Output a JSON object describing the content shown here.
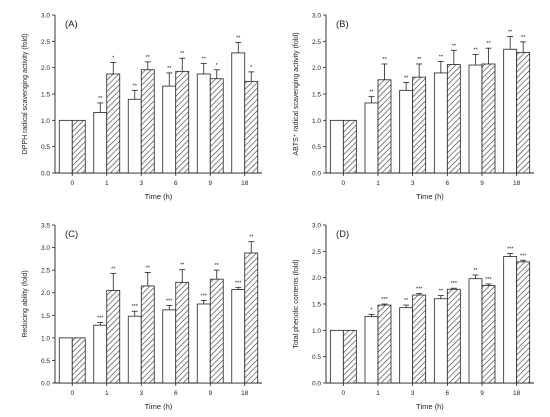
{
  "chart_data": [
    {
      "type": "bar",
      "panel_label": "(A)",
      "ylabel": "DPPH radical scavenging activity (fold)",
      "xlabel": "Time (h)",
      "categories": [
        "0",
        "1",
        "3",
        "6",
        "9",
        "18"
      ],
      "ylim": [
        0,
        3.0
      ],
      "yticks": [
        "0.0",
        "0.5",
        "1.0",
        "1.5",
        "2.0",
        "2.5",
        "3.0"
      ],
      "series": [
        {
          "fill": "open",
          "values": [
            1.0,
            1.15,
            1.4,
            1.65,
            1.88,
            2.28
          ],
          "errors": [
            0,
            0.18,
            0.17,
            0.25,
            0.2,
            0.2
          ],
          "sig": [
            "",
            "**",
            "**",
            "**",
            "**",
            "**"
          ]
        },
        {
          "fill": "hatched",
          "values": [
            1.0,
            1.88,
            1.96,
            1.93,
            1.79,
            1.74
          ],
          "errors": [
            0,
            0.22,
            0.15,
            0.25,
            0.17,
            0.18
          ],
          "sig": [
            "",
            "*",
            "**",
            "**",
            "*",
            "*"
          ]
        }
      ]
    },
    {
      "type": "bar",
      "panel_label": "(B)",
      "ylabel": "ABTS⁺ radical scavenging activity (fold)",
      "xlabel": "Time (h)",
      "categories": [
        "0",
        "1",
        "3",
        "6",
        "9",
        "18"
      ],
      "ylim": [
        0,
        3.0
      ],
      "yticks": [
        "0.0",
        "0.5",
        "1.0",
        "1.5",
        "2.0",
        "2.5",
        "3.0"
      ],
      "series": [
        {
          "fill": "open",
          "values": [
            1.0,
            1.33,
            1.57,
            1.9,
            2.05,
            2.35
          ],
          "errors": [
            0,
            0.12,
            0.15,
            0.22,
            0.2,
            0.24
          ],
          "sig": [
            "",
            "**",
            "**",
            "**",
            "**",
            "**"
          ]
        },
        {
          "fill": "hatched",
          "values": [
            1.0,
            1.77,
            1.82,
            2.06,
            2.07,
            2.29
          ],
          "errors": [
            0,
            0.3,
            0.25,
            0.27,
            0.3,
            0.2
          ],
          "sig": [
            "",
            "**",
            "**",
            "**",
            "**",
            "**"
          ]
        }
      ]
    },
    {
      "type": "bar",
      "panel_label": "(C)",
      "ylabel": "Reducing ability (fold)",
      "xlabel": "Time (h)",
      "categories": [
        "0",
        "1",
        "3",
        "6",
        "9",
        "18"
      ],
      "ylim": [
        0,
        3.5
      ],
      "yticks": [
        "0.0",
        "0.5",
        "1.0",
        "1.5",
        "2.0",
        "2.5",
        "3.0",
        "3.5"
      ],
      "series": [
        {
          "fill": "open",
          "values": [
            1.0,
            1.28,
            1.48,
            1.62,
            1.75,
            2.07
          ],
          "errors": [
            0,
            0.06,
            0.11,
            0.1,
            0.08,
            0.05
          ],
          "sig": [
            "",
            "***",
            "***",
            "***",
            "***",
            "***"
          ]
        },
        {
          "fill": "hatched",
          "values": [
            1.0,
            2.05,
            2.15,
            2.23,
            2.3,
            2.88
          ],
          "errors": [
            0,
            0.38,
            0.3,
            0.28,
            0.2,
            0.25
          ],
          "sig": [
            "",
            "**",
            "**",
            "**",
            "**",
            "**"
          ]
        }
      ]
    },
    {
      "type": "bar",
      "panel_label": "(D)",
      "ylabel": "Total phenolic contents (fold)",
      "xlabel": "Time (h)",
      "categories": [
        "0",
        "1",
        "3",
        "6",
        "9",
        "18"
      ],
      "ylim": [
        0,
        3.0
      ],
      "yticks": [
        "0.0",
        "0.5",
        "1.0",
        "1.5",
        "2.0",
        "2.5",
        "3.0"
      ],
      "series": [
        {
          "fill": "open",
          "values": [
            1.0,
            1.26,
            1.43,
            1.6,
            1.98,
            2.4
          ],
          "errors": [
            0,
            0.04,
            0.05,
            0.06,
            0.07,
            0.06
          ],
          "sig": [
            "",
            "*",
            "**",
            "**",
            "**",
            "***"
          ]
        },
        {
          "fill": "hatched",
          "values": [
            1.0,
            1.48,
            1.67,
            1.78,
            1.85,
            2.3
          ],
          "errors": [
            0,
            0.02,
            0.03,
            0.02,
            0.03,
            0.03
          ],
          "sig": [
            "",
            "***",
            "***",
            "***",
            "***",
            "***"
          ]
        }
      ]
    }
  ]
}
